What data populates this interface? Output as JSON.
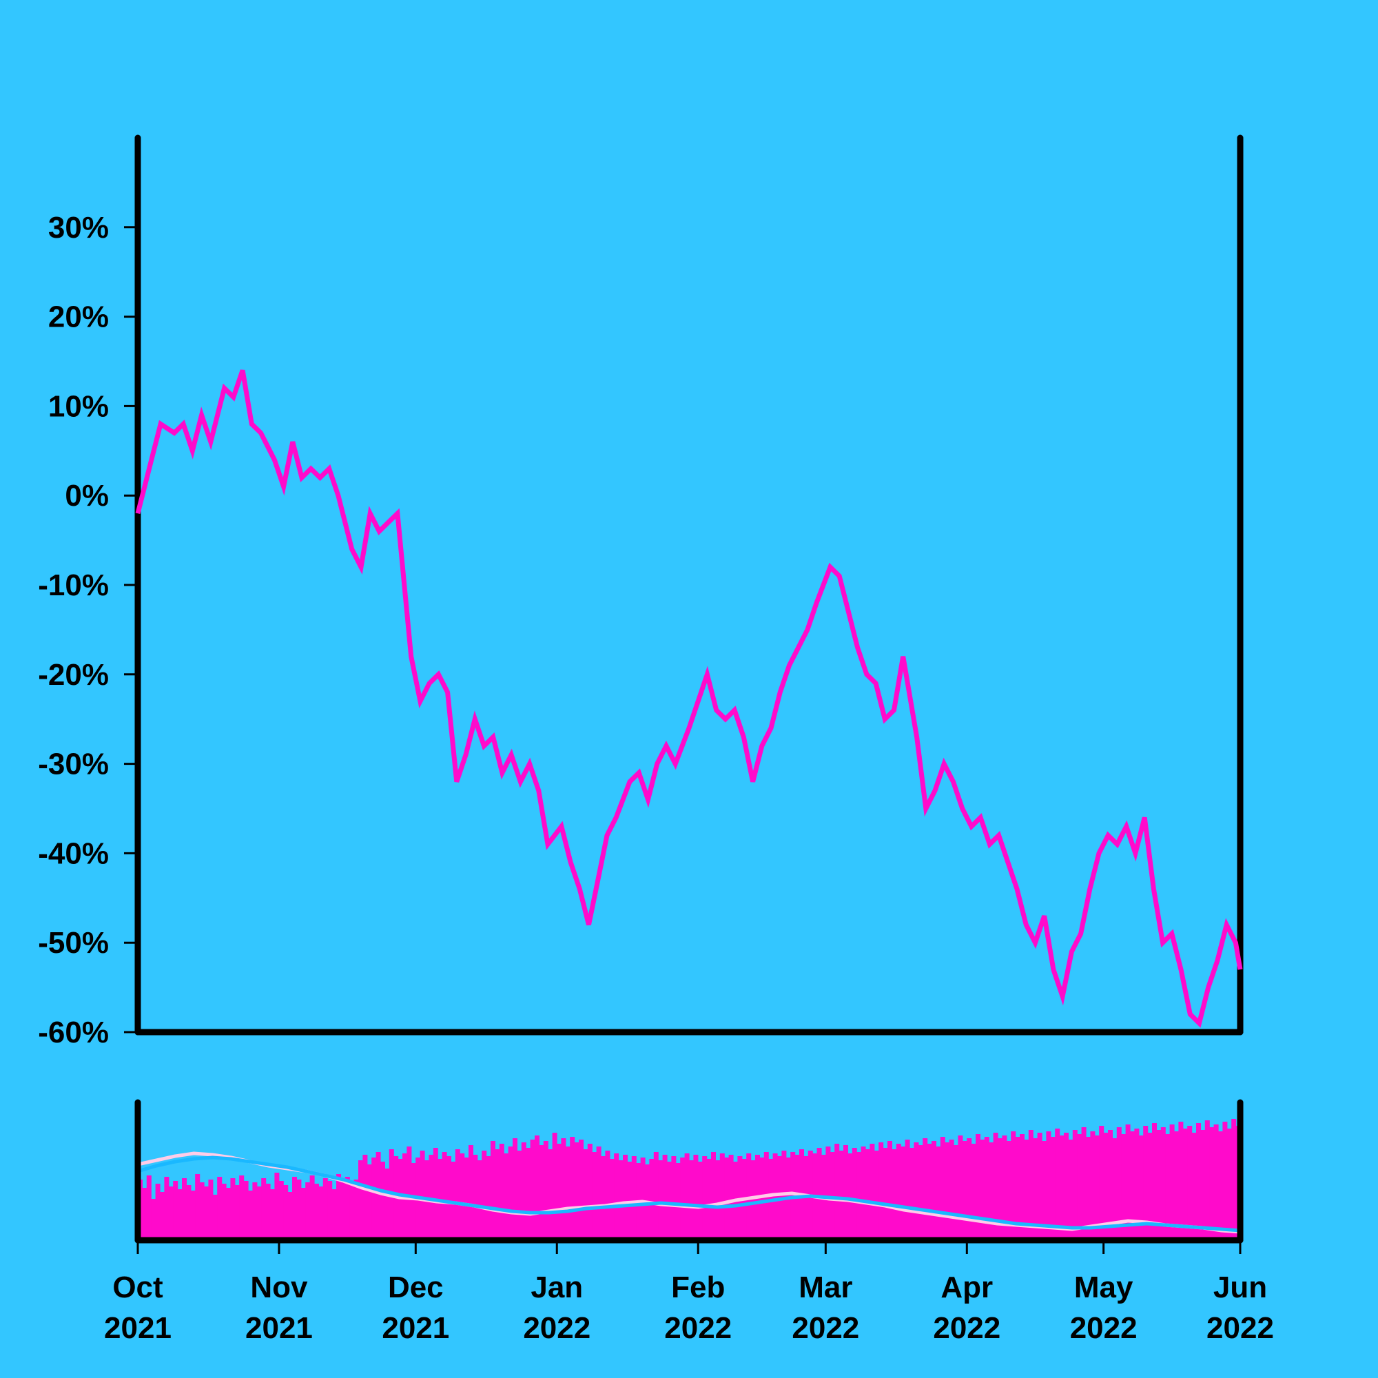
{
  "chart_data": [
    {
      "type": "line",
      "panel": "price",
      "x_start": "2021-10-01",
      "x_end": "2022-05-31",
      "ylim": [
        -60,
        40
      ],
      "y_ticks": [
        30,
        20,
        10,
        0,
        -10,
        -20,
        -30,
        -40,
        -50,
        -60
      ],
      "y_tick_labels": [
        "30%",
        "20%",
        "10%",
        "0%",
        "-10%",
        "-20%",
        "-30%",
        "-40%",
        "-50%",
        "-60%"
      ],
      "series": [
        {
          "color": "#FF0ACB",
          "points": [
            [
              "2021-10-01",
              -2
            ],
            [
              "2021-10-04",
              4
            ],
            [
              "2021-10-06",
              8
            ],
            [
              "2021-10-09",
              7
            ],
            [
              "2021-10-11",
              8
            ],
            [
              "2021-10-13",
              5
            ],
            [
              "2021-10-15",
              9
            ],
            [
              "2021-10-17",
              6
            ],
            [
              "2021-10-20",
              12
            ],
            [
              "2021-10-22",
              11
            ],
            [
              "2021-10-24",
              14
            ],
            [
              "2021-10-26",
              8
            ],
            [
              "2021-10-28",
              7
            ],
            [
              "2021-10-31",
              4
            ],
            [
              "2021-11-02",
              1
            ],
            [
              "2021-11-04",
              6
            ],
            [
              "2021-11-06",
              2
            ],
            [
              "2021-11-08",
              3
            ],
            [
              "2021-11-10",
              2
            ],
            [
              "2021-11-12",
              3
            ],
            [
              "2021-11-14",
              0
            ],
            [
              "2021-11-17",
              -6
            ],
            [
              "2021-11-19",
              -8
            ],
            [
              "2021-11-21",
              -2
            ],
            [
              "2021-11-23",
              -4
            ],
            [
              "2021-11-25",
              -3
            ],
            [
              "2021-11-27",
              -2
            ],
            [
              "2021-11-30",
              -18
            ],
            [
              "2021-12-02",
              -23
            ],
            [
              "2021-12-04",
              -21
            ],
            [
              "2021-12-06",
              -20
            ],
            [
              "2021-12-08",
              -22
            ],
            [
              "2021-12-10",
              -32
            ],
            [
              "2021-12-12",
              -29
            ],
            [
              "2021-12-14",
              -25
            ],
            [
              "2021-12-16",
              -28
            ],
            [
              "2021-12-18",
              -27
            ],
            [
              "2021-12-20",
              -31
            ],
            [
              "2021-12-22",
              -29
            ],
            [
              "2021-12-24",
              -32
            ],
            [
              "2021-12-26",
              -30
            ],
            [
              "2021-12-28",
              -33
            ],
            [
              "2021-12-30",
              -39
            ],
            [
              "2022-01-02",
              -37
            ],
            [
              "2022-01-04",
              -41
            ],
            [
              "2022-01-06",
              -44
            ],
            [
              "2022-01-08",
              -48
            ],
            [
              "2022-01-10",
              -43
            ],
            [
              "2022-01-12",
              -38
            ],
            [
              "2022-01-14",
              -36
            ],
            [
              "2022-01-17",
              -32
            ],
            [
              "2022-01-19",
              -31
            ],
            [
              "2022-01-21",
              -34
            ],
            [
              "2022-01-23",
              -30
            ],
            [
              "2022-01-25",
              -28
            ],
            [
              "2022-01-27",
              -30
            ],
            [
              "2022-01-30",
              -26
            ],
            [
              "2022-02-01",
              -23
            ],
            [
              "2022-02-03",
              -20
            ],
            [
              "2022-02-05",
              -24
            ],
            [
              "2022-02-07",
              -25
            ],
            [
              "2022-02-09",
              -24
            ],
            [
              "2022-02-11",
              -27
            ],
            [
              "2022-02-13",
              -32
            ],
            [
              "2022-02-15",
              -28
            ],
            [
              "2022-02-17",
              -26
            ],
            [
              "2022-02-19",
              -22
            ],
            [
              "2022-02-21",
              -19
            ],
            [
              "2022-02-23",
              -17
            ],
            [
              "2022-02-25",
              -15
            ],
            [
              "2022-02-27",
              -12
            ],
            [
              "2022-03-02",
              -8
            ],
            [
              "2022-03-04",
              -9
            ],
            [
              "2022-03-06",
              -13
            ],
            [
              "2022-03-08",
              -17
            ],
            [
              "2022-03-10",
              -20
            ],
            [
              "2022-03-12",
              -21
            ],
            [
              "2022-03-14",
              -25
            ],
            [
              "2022-03-16",
              -24
            ],
            [
              "2022-03-18",
              -18
            ],
            [
              "2022-03-21",
              -27
            ],
            [
              "2022-03-23",
              -35
            ],
            [
              "2022-03-25",
              -33
            ],
            [
              "2022-03-27",
              -30
            ],
            [
              "2022-03-29",
              -32
            ],
            [
              "2022-03-31",
              -35
            ],
            [
              "2022-04-02",
              -37
            ],
            [
              "2022-04-04",
              -36
            ],
            [
              "2022-04-06",
              -39
            ],
            [
              "2022-04-08",
              -38
            ],
            [
              "2022-04-10",
              -41
            ],
            [
              "2022-04-12",
              -44
            ],
            [
              "2022-04-14",
              -48
            ],
            [
              "2022-04-16",
              -50
            ],
            [
              "2022-04-18",
              -47
            ],
            [
              "2022-04-20",
              -53
            ],
            [
              "2022-04-22",
              -56
            ],
            [
              "2022-04-24",
              -51
            ],
            [
              "2022-04-26",
              -49
            ],
            [
              "2022-04-28",
              -44
            ],
            [
              "2022-04-30",
              -40
            ],
            [
              "2022-05-02",
              -38
            ],
            [
              "2022-05-04",
              -39
            ],
            [
              "2022-05-06",
              -37
            ],
            [
              "2022-05-08",
              -40
            ],
            [
              "2022-05-10",
              -36
            ],
            [
              "2022-05-12",
              -44
            ],
            [
              "2022-05-14",
              -50
            ],
            [
              "2022-05-16",
              -49
            ],
            [
              "2022-05-18",
              -53
            ],
            [
              "2022-05-20",
              -58
            ],
            [
              "2022-05-22",
              -59
            ],
            [
              "2022-05-24",
              -55
            ],
            [
              "2022-05-26",
              -52
            ],
            [
              "2022-05-28",
              -48
            ],
            [
              "2022-05-30",
              -50
            ],
            [
              "2022-05-31",
              -53
            ]
          ]
        }
      ]
    },
    {
      "type": "bar",
      "panel": "volume",
      "x_start": "2021-10-01",
      "x_end": "2022-05-31",
      "ylim": [
        0,
        100
      ],
      "bar_color": "#FF0ACB",
      "values": [
        44,
        38,
        47,
        30,
        41,
        35,
        46,
        39,
        43,
        37,
        45,
        40,
        36,
        48,
        42,
        39,
        44,
        33,
        46,
        41,
        38,
        45,
        40,
        47,
        43,
        36,
        42,
        39,
        45,
        41,
        37,
        49,
        43,
        40,
        35,
        46,
        44,
        38,
        42,
        47,
        41,
        39,
        45,
        43,
        37,
        48,
        42,
        46,
        40,
        44,
        58,
        62,
        55,
        60,
        64,
        57,
        52,
        66,
        61,
        59,
        63,
        68,
        56,
        60,
        65,
        58,
        62,
        67,
        59,
        64,
        61,
        57,
        66,
        63,
        60,
        69,
        62,
        58,
        65,
        61,
        72,
        66,
        70,
        63,
        68,
        74,
        65,
        71,
        67,
        73,
        76,
        69,
        72,
        66,
        78,
        70,
        74,
        68,
        75,
        71,
        73,
        66,
        70,
        64,
        68,
        61,
        65,
        59,
        63,
        58,
        62,
        57,
        61,
        56,
        60,
        55,
        59,
        64,
        58,
        62,
        57,
        61,
        56,
        60,
        63,
        58,
        62,
        57,
        61,
        59,
        64,
        58,
        63,
        60,
        62,
        57,
        61,
        59,
        63,
        58,
        62,
        60,
        64,
        59,
        63,
        61,
        65,
        60,
        64,
        62,
        66,
        61,
        65,
        63,
        67,
        62,
        68,
        64,
        70,
        65,
        69,
        63,
        67,
        64,
        68,
        66,
        70,
        65,
        71,
        67,
        72,
        66,
        70,
        68,
        73,
        67,
        71,
        69,
        74,
        70,
        72,
        68,
        75,
        71,
        73,
        69,
        76,
        72,
        74,
        70,
        77,
        73,
        75,
        71,
        78,
        74,
        76,
        72,
        79,
        75,
        77,
        73,
        80,
        74,
        78,
        72,
        79,
        75,
        81,
        76,
        78,
        73,
        80,
        77,
        82,
        75,
        79,
        76,
        83,
        78,
        80,
        74,
        82,
        77,
        84,
        79,
        81,
        76,
        83,
        78,
        85,
        80,
        82,
        77,
        84,
        79,
        86,
        81,
        83,
        78,
        85,
        80,
        87,
        82,
        84,
        79,
        86,
        81,
        88,
        83
      ],
      "series": [
        {
          "color": "#FFCCE8",
          "values": [
            55,
            58,
            61,
            63,
            62,
            60,
            57,
            54,
            52,
            50,
            47,
            43,
            38,
            34,
            31,
            30,
            28,
            27,
            25,
            22,
            20,
            19,
            21,
            23,
            24,
            25,
            27,
            28,
            26,
            25,
            24,
            26,
            29,
            31,
            33,
            34,
            32,
            30,
            29,
            27,
            25,
            22,
            20,
            18,
            16,
            14,
            12,
            11,
            10,
            9,
            8,
            10,
            12,
            14,
            13,
            11,
            10,
            9,
            7,
            6
          ]
        },
        {
          "color": "#1AB8FF",
          "values": [
            50,
            54,
            57,
            59,
            60,
            59,
            57,
            55,
            53,
            50,
            47,
            44,
            40,
            36,
            33,
            31,
            29,
            27,
            25,
            23,
            21,
            20,
            20,
            21,
            23,
            24,
            25,
            26,
            27,
            26,
            25,
            24,
            25,
            27,
            29,
            31,
            32,
            31,
            30,
            28,
            26,
            24,
            22,
            20,
            18,
            16,
            14,
            12,
            11,
            10,
            9,
            9,
            10,
            11,
            12,
            11,
            10,
            9,
            8,
            7
          ]
        }
      ]
    }
  ],
  "x_axis": {
    "ticks": [
      {
        "date": "2021-10-01",
        "month": "Oct",
        "year": "2021"
      },
      {
        "date": "2021-11-01",
        "month": "Nov",
        "year": "2021"
      },
      {
        "date": "2021-12-01",
        "month": "Dec",
        "year": "2021"
      },
      {
        "date": "2022-01-01",
        "month": "Jan",
        "year": "2022"
      },
      {
        "date": "2022-02-01",
        "month": "Feb",
        "year": "2022"
      },
      {
        "date": "2022-03-01",
        "month": "Mar",
        "year": "2022"
      },
      {
        "date": "2022-04-01",
        "month": "Apr",
        "year": "2022"
      },
      {
        "date": "2022-05-01",
        "month": "May",
        "year": "2022"
      },
      {
        "date": "2022-06-01",
        "month": "Jun",
        "year": "2022"
      }
    ]
  },
  "colors": {
    "background": "#33C6FF",
    "axis": "#000000",
    "price_line": "#FF0ACB"
  }
}
